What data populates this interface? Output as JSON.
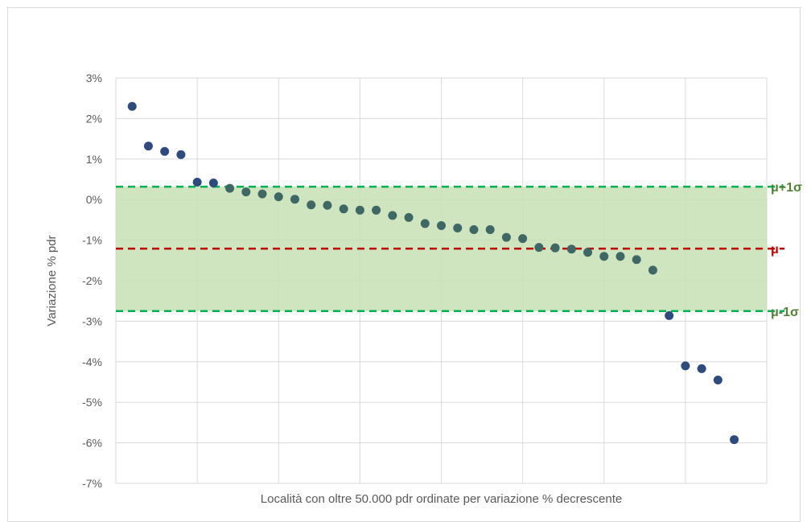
{
  "chart_data": {
    "type": "scatter",
    "title": "",
    "xlabel": "Località con oltre 50.000 pdr ordinate per variazione % decrescente",
    "ylabel": "Variazione % pdr",
    "ylim": [
      -7,
      3
    ],
    "y_ticks": [
      "3%",
      "2%",
      "1%",
      "0%",
      "-1%",
      "-2%",
      "-3%",
      "-4%",
      "-5%",
      "-6%",
      "-7%"
    ],
    "y_tick_values": [
      3,
      2,
      1,
      0,
      -1,
      -2,
      -3,
      -4,
      -5,
      -6,
      -7
    ],
    "xlim": [
      0,
      40
    ],
    "x_gridlines": [
      5,
      10,
      15,
      20,
      25,
      30,
      35,
      40
    ],
    "grid": true,
    "points": [
      {
        "x": 1,
        "y": 2.3
      },
      {
        "x": 2,
        "y": 1.32
      },
      {
        "x": 3,
        "y": 1.19
      },
      {
        "x": 4,
        "y": 1.11
      },
      {
        "x": 5,
        "y": 0.43
      },
      {
        "x": 6,
        "y": 0.41
      },
      {
        "x": 7,
        "y": 0.28
      },
      {
        "x": 8,
        "y": 0.19
      },
      {
        "x": 9,
        "y": 0.14
      },
      {
        "x": 10,
        "y": 0.07
      },
      {
        "x": 11,
        "y": 0.01
      },
      {
        "x": 12,
        "y": -0.13
      },
      {
        "x": 13,
        "y": -0.14
      },
      {
        "x": 14,
        "y": -0.23
      },
      {
        "x": 15,
        "y": -0.26
      },
      {
        "x": 16,
        "y": -0.26
      },
      {
        "x": 17,
        "y": -0.39
      },
      {
        "x": 18,
        "y": -0.44
      },
      {
        "x": 19,
        "y": -0.59
      },
      {
        "x": 20,
        "y": -0.64
      },
      {
        "x": 21,
        "y": -0.7
      },
      {
        "x": 22,
        "y": -0.74
      },
      {
        "x": 23,
        "y": -0.74
      },
      {
        "x": 24,
        "y": -0.93
      },
      {
        "x": 25,
        "y": -0.96
      },
      {
        "x": 26,
        "y": -1.18
      },
      {
        "x": 27,
        "y": -1.19
      },
      {
        "x": 28,
        "y": -1.22
      },
      {
        "x": 29,
        "y": -1.3
      },
      {
        "x": 30,
        "y": -1.4
      },
      {
        "x": 31,
        "y": -1.4
      },
      {
        "x": 32,
        "y": -1.48
      },
      {
        "x": 33,
        "y": -1.74
      },
      {
        "x": 34,
        "y": -2.86
      },
      {
        "x": 35,
        "y": -4.1
      },
      {
        "x": 36,
        "y": -4.17
      },
      {
        "x": 37,
        "y": -4.45
      },
      {
        "x": 38,
        "y": -5.92
      }
    ],
    "reference_lines": [
      {
        "label": "μ+1σ",
        "y": 0.32,
        "color": "#00b050"
      },
      {
        "label": "μ",
        "y": -1.21,
        "color": "#c00000"
      },
      {
        "label": "μ-1σ",
        "y": -2.75,
        "color": "#00b050"
      }
    ],
    "label_colors": {
      "μ+1σ": "#538135",
      "μ": "#c00000",
      "μ-1σ": "#538135"
    },
    "band": {
      "y_from": -2.75,
      "y_to": 0.32,
      "color": "#c5e0b4"
    },
    "point_color": "#2f4b7c",
    "point_color_in_band": "#3f6865"
  }
}
